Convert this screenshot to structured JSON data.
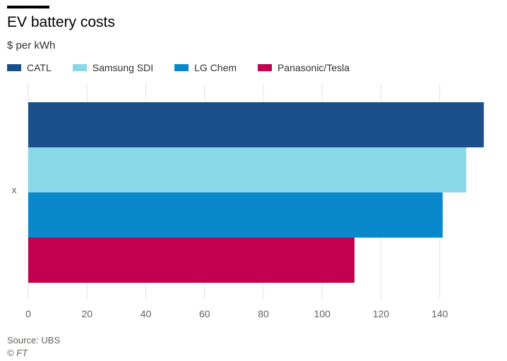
{
  "header": {
    "title": "EV battery costs",
    "subtitle": "$ per kWh"
  },
  "footer": {
    "source": "Source: UBS",
    "copyright": "© FT"
  },
  "chart_data": {
    "type": "bar",
    "orientation": "horizontal",
    "title": "EV battery costs",
    "ylabel": "$ per kWh",
    "categories": [
      "x"
    ],
    "series": [
      {
        "name": "CATL",
        "values": [
          155
        ],
        "color": "#1a4f8c"
      },
      {
        "name": "Samsung SDI",
        "values": [
          149
        ],
        "color": "#88d8e8"
      },
      {
        "name": "LG Chem",
        "values": [
          141
        ],
        "color": "#0a88cc"
      },
      {
        "name": "Panasonic/Tesla",
        "values": [
          111
        ],
        "color": "#c2004f"
      }
    ],
    "xlim": [
      0,
      160
    ],
    "xticks": [
      0,
      20,
      40,
      60,
      80,
      100,
      120,
      140
    ],
    "grid": true,
    "legend": "top-left"
  }
}
